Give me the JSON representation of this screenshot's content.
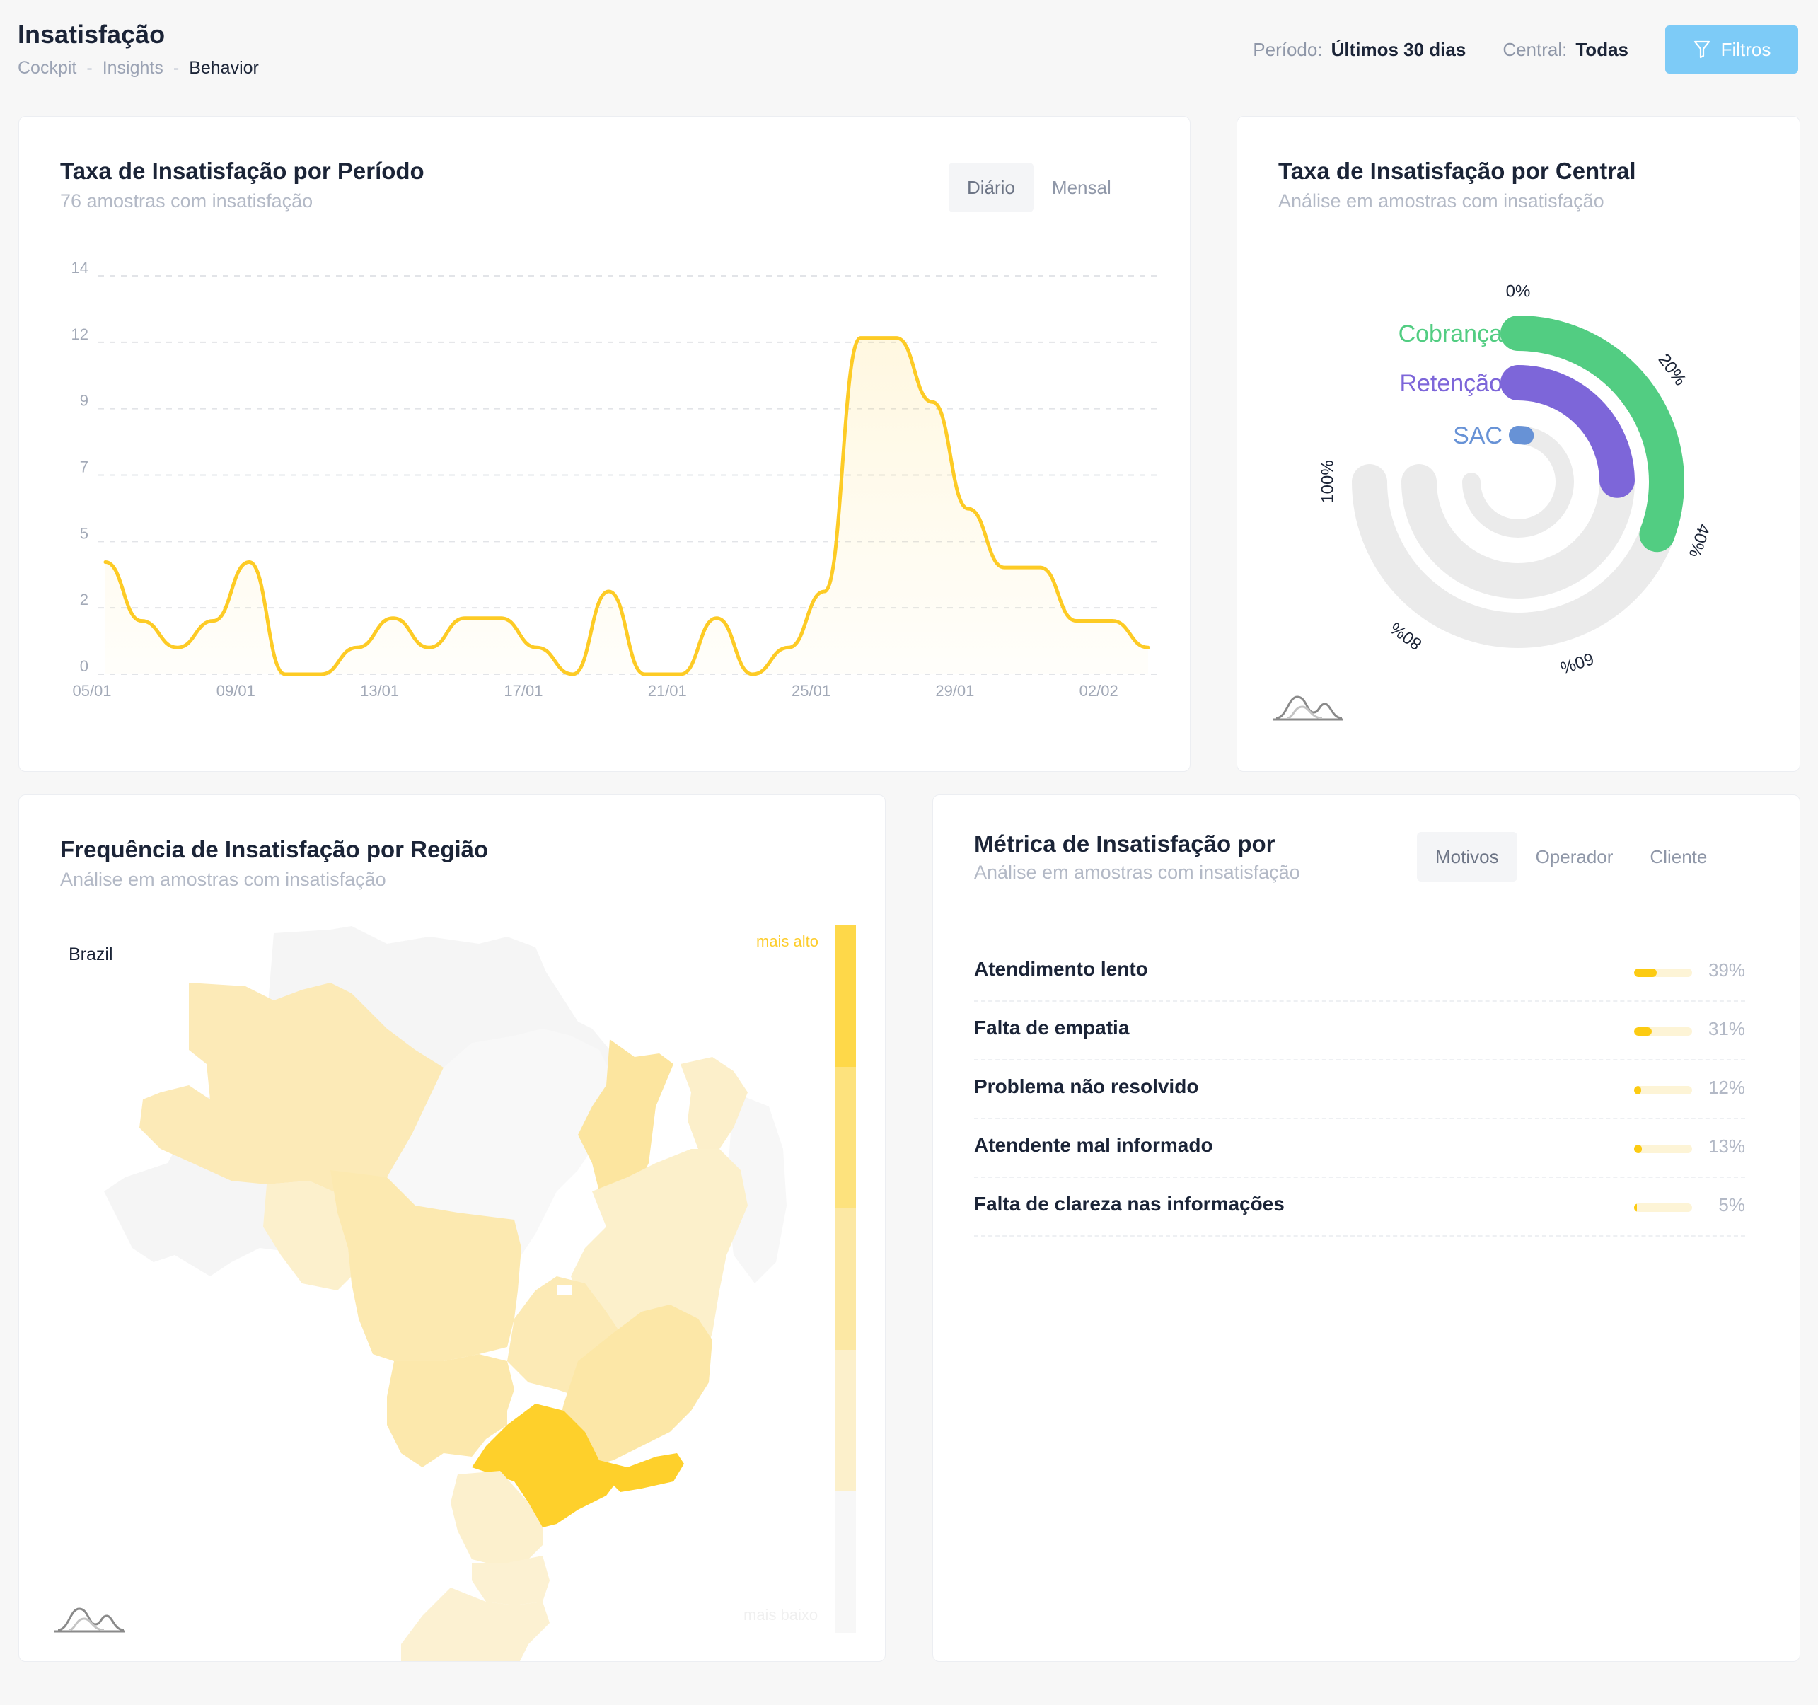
{
  "header": {
    "title": "Insatisfação",
    "breadcrumb": [
      "Cockpit",
      "Insights",
      "Behavior"
    ],
    "period_label": "Período:",
    "period_value": "Últimos 30 dias",
    "central_label": "Central:",
    "central_value": "Todas",
    "filter_button": "Filtros"
  },
  "colors": {
    "accent_blue": "#7dcbf7",
    "line_yellow": "#fdcb25",
    "cobranca": "#52cd82",
    "retencao": "#7d66d9",
    "sac": "#6792d6",
    "track_gray": "#ebebeb"
  },
  "line_card": {
    "title": "Taxa de Insatisfação por Período",
    "subtitle": "76 amostras com insatisfação",
    "tabs": [
      "Diário",
      "Mensal"
    ],
    "active_tab": "Diário"
  },
  "radial_card": {
    "title": "Taxa de Insatisfação por Central",
    "subtitle": "Análise em amostras com insatisfação"
  },
  "map_card": {
    "title": "Frequência de Insatisfação por Região",
    "subtitle": "Análise em amostras com insatisfação",
    "country": "Brazil",
    "legend_high": "mais alto",
    "legend_low": "mais baixo"
  },
  "metric_card": {
    "title": "Métrica de Insatisfação por",
    "subtitle": "Análise em amostras com insatisfação",
    "tabs": [
      "Motivos",
      "Operador",
      "Cliente"
    ],
    "active_tab": "Motivos",
    "rows": [
      {
        "label": "Atendimento lento",
        "value": 39,
        "pct": "39%"
      },
      {
        "label": "Falta de empatia",
        "value": 31,
        "pct": "31%"
      },
      {
        "label": "Problema não resolvido",
        "value": 12,
        "pct": "12%"
      },
      {
        "label": "Atendente mal informado",
        "value": 13,
        "pct": "13%"
      },
      {
        "label": "Falta de clareza nas informações",
        "value": 5,
        "pct": "5%"
      }
    ]
  },
  "chart_data": [
    {
      "type": "line",
      "title": "Taxa de Insatisfação por Período",
      "x_tick_labels": [
        "05/01",
        "09/01",
        "13/01",
        "17/01",
        "21/01",
        "25/01",
        "29/01",
        "02/02"
      ],
      "y_tick_labels": [
        "0",
        "2",
        "5",
        "7",
        "9",
        "12",
        "14"
      ],
      "ylim": [
        0,
        14.5
      ],
      "grid": true,
      "series": [
        {
          "x": [
            "05/01",
            "06/01",
            "07/01",
            "08/01",
            "09/01",
            "10/01",
            "11/01",
            "12/01",
            "13/01",
            "14/01",
            "15/01",
            "16/01",
            "17/01",
            "18/01",
            "19/01",
            "20/01",
            "21/01",
            "22/01",
            "23/01",
            "24/01",
            "25/01",
            "26/01",
            "27/01",
            "28/01",
            "29/01",
            "30/01",
            "31/01",
            "01/02",
            "02/02",
            "03/02"
          ],
          "values": [
            4.2,
            2.0,
            1.0,
            2.0,
            4.2,
            0,
            0,
            1.0,
            2.1,
            1.0,
            2.1,
            2.1,
            1.0,
            0,
            3.1,
            0,
            0,
            2.1,
            0,
            1.0,
            3.1,
            12.6,
            12.6,
            10.2,
            6.2,
            4.0,
            4.0,
            2.0,
            2.0,
            1.0
          ]
        }
      ]
    },
    {
      "type": "bar",
      "subtype": "radial",
      "title": "Taxa de Insatisfação por Central",
      "categories": [
        "Cobrança",
        "Retenção",
        "SAC"
      ],
      "values": [
        41,
        33,
        3
      ],
      "axis_tick_labels": [
        "0%",
        "20%",
        "40%",
        "60%",
        "80%",
        "100%"
      ],
      "ylim": [
        0,
        100
      ]
    },
    {
      "type": "heatmap",
      "subtype": "choropleth",
      "title": "Frequência de Insatisfação por Região",
      "legend": [
        "mais alto",
        "mais baixo"
      ]
    }
  ]
}
